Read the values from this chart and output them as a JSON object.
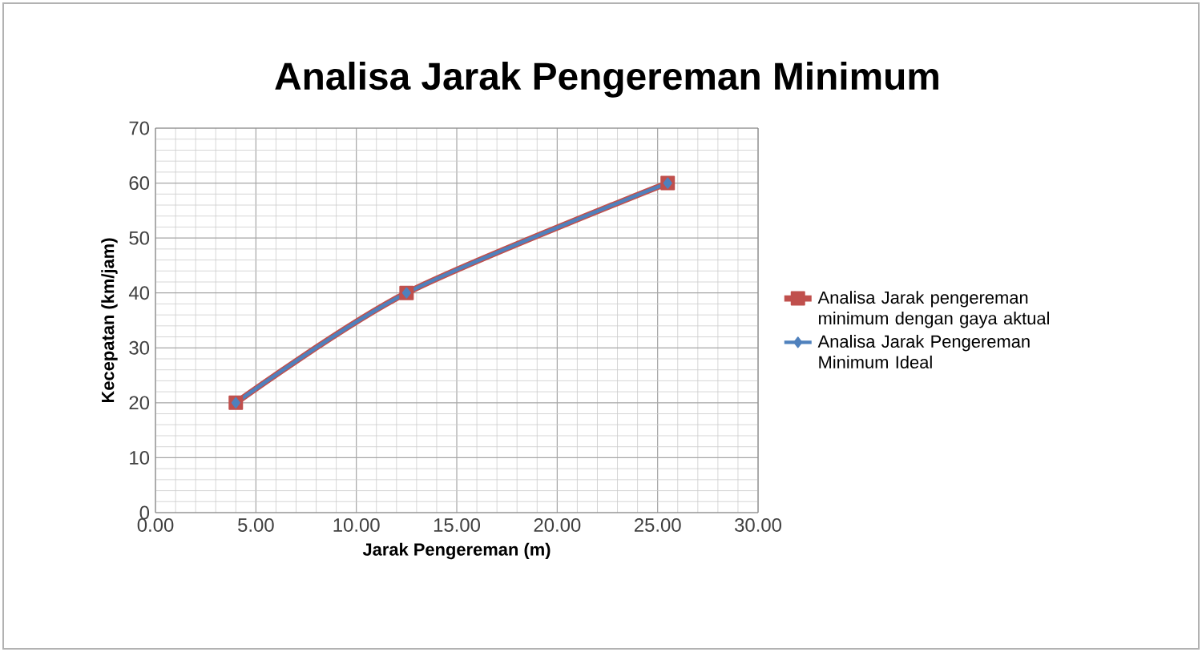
{
  "chart_data": {
    "type": "line",
    "title": "Analisa Jarak Pengereman Minimum",
    "xlabel": "Jarak Pengereman (m)",
    "ylabel": "Kecepatan (km/jam)",
    "x": [
      4.0,
      12.5,
      25.5
    ],
    "series": [
      {
        "name": "Analisa Jarak pengereman minimum dengan gaya aktual",
        "color": "#c0504d",
        "values": [
          20,
          40,
          60
        ],
        "marker": "square"
      },
      {
        "name": "Analisa Jarak Pengereman Minimum Ideal",
        "color": "#4f81bd",
        "values": [
          20,
          40,
          60
        ],
        "marker": "diamond"
      }
    ],
    "xlim": [
      0,
      30
    ],
    "xticks": [
      {
        "value": 0,
        "label": "0.00"
      },
      {
        "value": 5,
        "label": "5.00"
      },
      {
        "value": 10,
        "label": "10.00"
      },
      {
        "value": 15,
        "label": "15.00"
      },
      {
        "value": 20,
        "label": "20.00"
      },
      {
        "value": 25,
        "label": "25.00"
      },
      {
        "value": 30,
        "label": "30.00"
      }
    ],
    "ylim": [
      0,
      70
    ],
    "yticks": [
      0,
      10,
      20,
      30,
      40,
      50,
      60,
      70
    ],
    "grid": true,
    "legend": "right",
    "line_style": "solid"
  }
}
